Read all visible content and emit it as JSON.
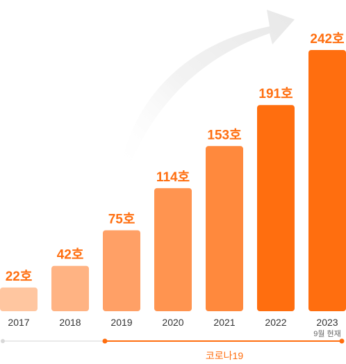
{
  "chart_data": {
    "type": "bar",
    "categories": [
      "2017",
      "2018",
      "2019",
      "2020",
      "2021",
      "2022",
      "2023"
    ],
    "values": [
      22,
      42,
      75,
      114,
      153,
      191,
      242
    ],
    "data_labels": [
      "22호",
      "42호",
      "75호",
      "114호",
      "153호",
      "191호",
      "242호"
    ],
    "category_notes": [
      "",
      "",
      "",
      "",
      "",
      "",
      "9월 현재"
    ],
    "ylim": [
      0,
      242
    ],
    "grid": false,
    "legend": "none",
    "growth_arrow": true,
    "period_annotation": {
      "label": "코로나19",
      "from_category": "2019",
      "to_category": "2023"
    }
  },
  "colors": {
    "value_label": "#FF6E0F",
    "bars": [
      "#FFC6A0",
      "#FFB383",
      "#FFA066",
      "#FF9450",
      "#FF893D",
      "#FF6E0F",
      "#FF6E0F"
    ],
    "period_line": "#FF6E0F",
    "baseline_line": "#EAEAEA",
    "arrow": "#F0F0F0",
    "tick_label": "#333333"
  }
}
